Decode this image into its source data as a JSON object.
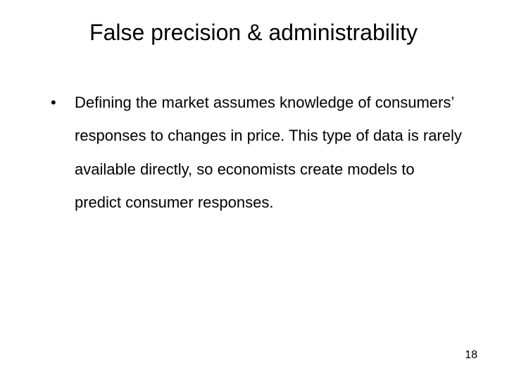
{
  "slide": {
    "title": "False precision & administrability",
    "bullets": [
      {
        "marker": "•",
        "text": "Defining the market assumes knowledge of consumers’ responses to changes in price. This type of data is rarely available directly, so economists create models to predict consumer responses."
      }
    ],
    "page_number": "18"
  },
  "style": {
    "background_color": "#ffffff",
    "text_color": "#000000",
    "title_fontsize": 32,
    "body_fontsize": 22,
    "page_number_fontsize": 16,
    "font_family": "Arial",
    "line_height": 2.15
  }
}
